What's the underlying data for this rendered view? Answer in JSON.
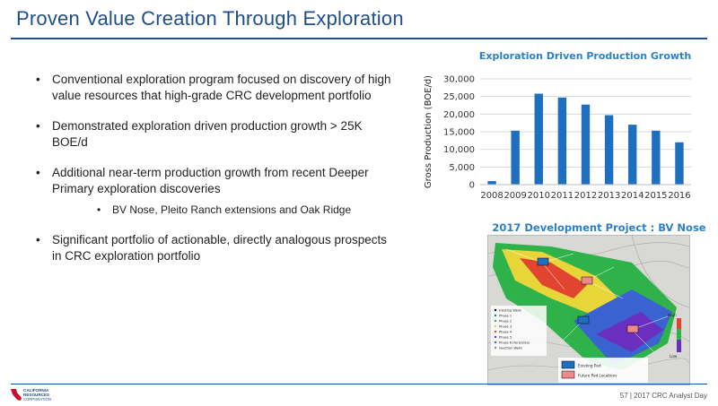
{
  "page_title": "Proven Value Creation Through Exploration",
  "bullets": [
    "Conventional exploration program focused on discovery of high value resources that high-grade CRC development portfolio",
    "Demonstrated exploration driven production growth > 25K BOE/d",
    "Additional near-term production growth from recent Deeper Primary exploration discoveries",
    "Significant portfolio of actionable, directly analogous prospects in CRC exploration portfolio"
  ],
  "sub_bullet": "BV Nose, Pleito Ranch extensions and Oak Ridge",
  "chart_data": {
    "type": "bar",
    "title": "Exploration Driven Production Growth",
    "xlabel": "",
    "ylabel": "Gross Production (BOE/d)",
    "categories": [
      "2008",
      "2009",
      "2010",
      "2011",
      "2012",
      "2013",
      "2014",
      "2015",
      "2016"
    ],
    "values": [
      1000,
      15300,
      25800,
      24700,
      22700,
      19700,
      17000,
      15300,
      12000
    ],
    "ylim": [
      0,
      30000
    ],
    "yticks": [
      "0",
      "5,000",
      "10,000",
      "15,000",
      "20,000",
      "25,000",
      "30,000"
    ],
    "grid": true,
    "bar_color": "#1f6fc1"
  },
  "map": {
    "title": "2017 Development Project : BV Nose",
    "legend_items": [
      "Existing Wells",
      "Phase 1",
      "Phase 2",
      "Phase 3",
      "Phase 4",
      "Phase 5",
      "Phase 6 Horizontal",
      "Injection Wells"
    ],
    "pad_legend": [
      "Existing Pad",
      "Future Pad Locations"
    ],
    "scale_high": "High",
    "scale_low": "Low"
  },
  "footer": {
    "logo_line1": "CALIFORNIA",
    "logo_line2": "RESOURCES",
    "logo_line3": "CORPORATION",
    "page_info": "57 | 2017 CRC Analyst Day"
  }
}
